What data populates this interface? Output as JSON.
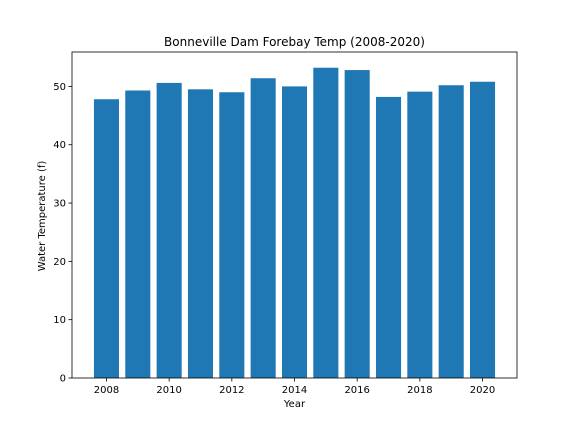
{
  "chart_data": {
    "type": "bar",
    "title": "Bonneville Dam Forebay Temp (2008-2020)",
    "xlabel": "Year",
    "ylabel": "Water Temperature (f)",
    "categories": [
      2008,
      2009,
      2010,
      2011,
      2012,
      2013,
      2014,
      2015,
      2016,
      2017,
      2018,
      2019,
      2020
    ],
    "values": [
      47.8,
      49.3,
      50.6,
      49.5,
      49.0,
      51.4,
      50.0,
      53.2,
      52.8,
      48.2,
      49.1,
      50.2,
      50.8
    ],
    "bar_color": "#1f77b4",
    "xlim": [
      2006.9,
      2021.1
    ],
    "ylim": [
      0,
      55.9
    ],
    "xticks": [
      2008,
      2010,
      2012,
      2014,
      2016,
      2018,
      2020
    ],
    "yticks": [
      0,
      10,
      20,
      30,
      40,
      50
    ],
    "grid": false,
    "legend": "none"
  }
}
